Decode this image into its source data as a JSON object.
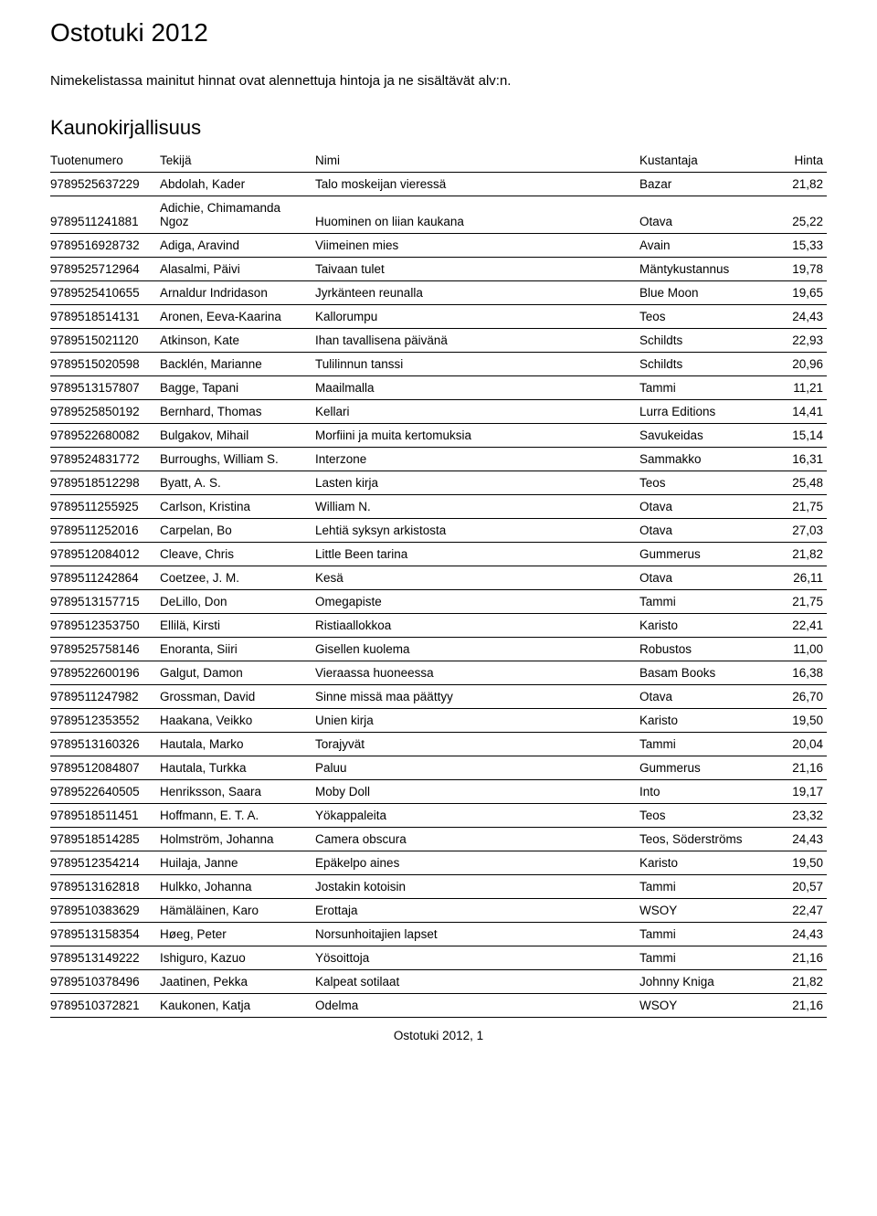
{
  "page_title": "Ostotuki 2012",
  "intro_text": "Nimekelistassa mainitut hinnat ovat alennettuja hintoja ja ne sisältävät alv:n.",
  "section_title": "Kaunokirjallisuus",
  "footer": "Ostotuki 2012, 1",
  "table": {
    "columns": [
      "Tuotenumero",
      "Tekijä",
      "Nimi",
      "Kustantaja",
      "Hinta"
    ],
    "rows": [
      [
        "9789525637229",
        "Abdolah, Kader",
        "Talo moskeijan vieressä",
        "Bazar",
        "21,82"
      ],
      [
        "9789511241881",
        "Adichie, Chimamanda Ngoz",
        "Huominen on liian kaukana",
        "Otava",
        "25,22"
      ],
      [
        "9789516928732",
        "Adiga, Aravind",
        "Viimeinen mies",
        "Avain",
        "15,33"
      ],
      [
        "9789525712964",
        "Alasalmi, Päivi",
        "Taivaan tulet",
        "Mäntykustannus",
        "19,78"
      ],
      [
        "9789525410655",
        "Arnaldur Indridason",
        "Jyrkänteen reunalla",
        "Blue Moon",
        "19,65"
      ],
      [
        "9789518514131",
        "Aronen, Eeva-Kaarina",
        "Kallorumpu",
        "Teos",
        "24,43"
      ],
      [
        "9789515021120",
        "Atkinson, Kate",
        "Ihan tavallisena päivänä",
        "Schildts",
        "22,93"
      ],
      [
        "9789515020598",
        "Backlén, Marianne",
        "Tulilinnun tanssi",
        "Schildts",
        "20,96"
      ],
      [
        "9789513157807",
        "Bagge, Tapani",
        "Maailmalla",
        "Tammi",
        "11,21"
      ],
      [
        "9789525850192",
        "Bernhard, Thomas",
        "Kellari",
        "Lurra Editions",
        "14,41"
      ],
      [
        "9789522680082",
        "Bulgakov, Mihail",
        "Morfiini ja muita kertomuksia",
        "Savukeidas",
        "15,14"
      ],
      [
        "9789524831772",
        "Burroughs, William S.",
        "Interzone",
        "Sammakko",
        "16,31"
      ],
      [
        "9789518512298",
        "Byatt, A. S.",
        "Lasten kirja",
        "Teos",
        "25,48"
      ],
      [
        "9789511255925",
        "Carlson, Kristina",
        "William N.",
        "Otava",
        "21,75"
      ],
      [
        "9789511252016",
        "Carpelan, Bo",
        "Lehtiä syksyn arkistosta",
        "Otava",
        "27,03"
      ],
      [
        "9789512084012",
        "Cleave, Chris",
        "Little Been tarina",
        "Gummerus",
        "21,82"
      ],
      [
        "9789511242864",
        "Coetzee, J. M.",
        "Kesä",
        "Otava",
        "26,11"
      ],
      [
        "9789513157715",
        "DeLillo, Don",
        "Omegapiste",
        "Tammi",
        "21,75"
      ],
      [
        "9789512353750",
        "Ellilä, Kirsti",
        "Ristiaallokkoa",
        "Karisto",
        "22,41"
      ],
      [
        "9789525758146",
        "Enoranta, Siiri",
        "Gisellen kuolema",
        "Robustos",
        "11,00"
      ],
      [
        "9789522600196",
        "Galgut, Damon",
        "Vieraassa huoneessa",
        "Basam Books",
        "16,38"
      ],
      [
        "9789511247982",
        "Grossman, David",
        "Sinne missä maa päättyy",
        "Otava",
        "26,70"
      ],
      [
        "9789512353552",
        "Haakana, Veikko",
        "Unien kirja",
        "Karisto",
        "19,50"
      ],
      [
        "9789513160326",
        "Hautala, Marko",
        "Torajyvät",
        "Tammi",
        "20,04"
      ],
      [
        "9789512084807",
        "Hautala, Turkka",
        "Paluu",
        "Gummerus",
        "21,16"
      ],
      [
        "9789522640505",
        "Henriksson, Saara",
        "Moby Doll",
        "Into",
        "19,17"
      ],
      [
        "9789518511451",
        "Hoffmann, E. T. A.",
        "Yökappaleita",
        "Teos",
        "23,32"
      ],
      [
        "9789518514285",
        "Holmström, Johanna",
        "Camera obscura",
        "Teos, Söderströms",
        "24,43"
      ],
      [
        "9789512354214",
        "Huilaja, Janne",
        "Epäkelpo aines",
        "Karisto",
        "19,50"
      ],
      [
        "9789513162818",
        "Hulkko, Johanna",
        "Jostakin kotoisin",
        "Tammi",
        "20,57"
      ],
      [
        "9789510383629",
        "Hämäläinen, Karo",
        "Erottaja",
        "WSOY",
        "22,47"
      ],
      [
        "9789513158354",
        "Høeg, Peter",
        "Norsunhoitajien lapset",
        "Tammi",
        "24,43"
      ],
      [
        "9789513149222",
        "Ishiguro, Kazuo",
        "Yösoittoja",
        "Tammi",
        "21,16"
      ],
      [
        "9789510378496",
        "Jaatinen, Pekka",
        "Kalpeat sotilaat",
        "Johnny Kniga",
        "21,82"
      ],
      [
        "9789510372821",
        "Kaukonen, Katja",
        "Odelma",
        "WSOY",
        "21,16"
      ]
    ]
  }
}
